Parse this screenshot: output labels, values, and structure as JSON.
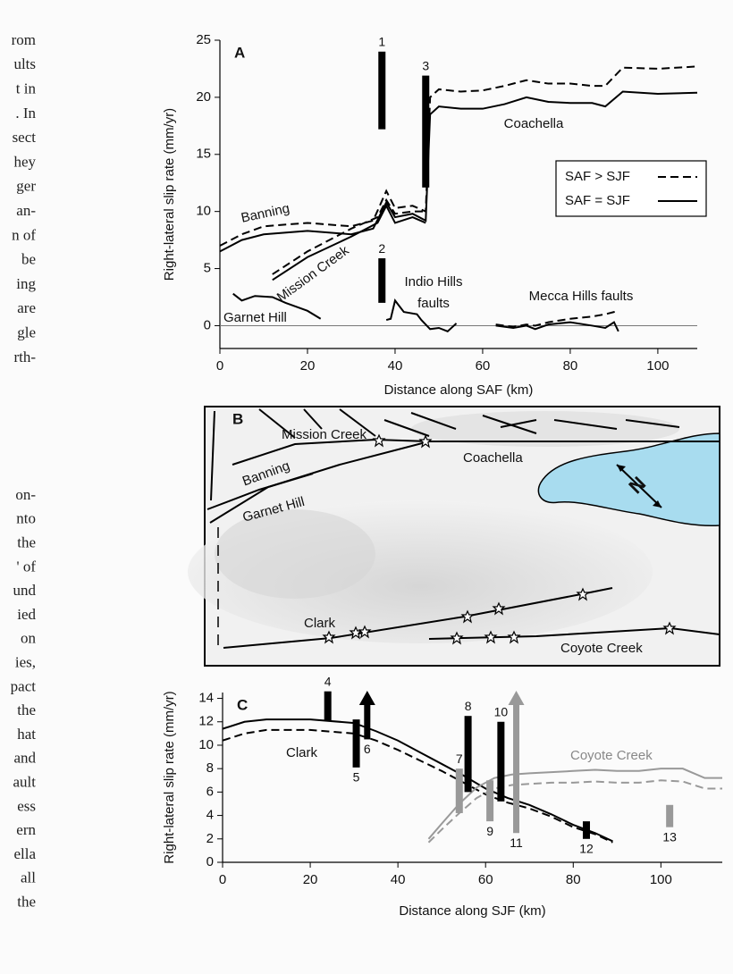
{
  "margin_text": [
    "rom",
    "ults",
    "t in",
    ". In",
    "sect",
    "hey",
    "ger",
    "an-",
    "n of",
    "be",
    "ing",
    "are",
    "gle",
    "rth-",
    "on-",
    "nto",
    "the",
    "' of",
    "und",
    "ied",
    "on",
    "ies,",
    "pact",
    "the",
    "hat",
    "and",
    "ault",
    "ess",
    "ern",
    "ella",
    "all",
    "the"
  ],
  "chart_data": [
    {
      "type": "line",
      "panel_label": "A",
      "xlabel": "Distance along SAF (km)",
      "ylabel": "Right-lateral slip rate (mm/yr)",
      "xlim": [
        0,
        109
      ],
      "ylim": [
        -2,
        25
      ],
      "xticks": [
        0,
        20,
        40,
        60,
        80,
        100
      ],
      "yticks": [
        0,
        5,
        10,
        15,
        20,
        25
      ],
      "zero_line": true,
      "legend": [
        {
          "name": "SAF > SJF",
          "dashed": true
        },
        {
          "name": "SAF = SJF",
          "dashed": false
        }
      ],
      "faults": [
        {
          "color": "#000",
          "x": [
            0,
            5,
            10,
            20,
            30,
            35,
            38,
            40,
            44,
            47,
            48,
            50,
            55,
            60,
            65,
            70,
            75,
            80,
            85,
            88,
            92,
            100,
            109
          ],
          "values": [
            6.5,
            7.5,
            8.0,
            8.3,
            8.0,
            8.5,
            10.8,
            9.5,
            9.8,
            9.2,
            18.5,
            19.2,
            19.0,
            19.0,
            19.4,
            20.0,
            19.6,
            19.5,
            19.5,
            19.2,
            20.5,
            20.3,
            20.4
          ],
          "values_dashed": [
            7.0,
            8.0,
            8.7,
            9.0,
            8.7,
            9.2,
            11.8,
            10.3,
            10.5,
            10.0,
            20.0,
            20.7,
            20.5,
            20.6,
            21.0,
            21.5,
            21.2,
            21.2,
            21.0,
            21.0,
            22.6,
            22.5,
            22.7
          ]
        },
        {
          "color": "#000",
          "x": [
            12,
            20,
            30,
            36,
            38,
            40,
            44,
            47
          ],
          "values": [
            4.0,
            6.0,
            7.8,
            9.0,
            10.5,
            9.0,
            9.5,
            9.0
          ],
          "values_dashed": [
            4.5,
            6.5,
            8.5,
            9.5,
            11.0,
            9.8,
            10.0,
            10.0
          ]
        },
        {
          "color": "#000",
          "x": [
            3,
            5,
            8,
            12,
            15,
            20,
            23
          ],
          "values": [
            2.8,
            2.2,
            2.6,
            2.5,
            2.0,
            1.3,
            0.6
          ]
        },
        {
          "color": "#000",
          "x": [
            38,
            39,
            40,
            42,
            45,
            46,
            48,
            50,
            52,
            54
          ],
          "values": [
            0.5,
            0.6,
            2.2,
            1.2,
            1.0,
            0.5,
            -0.3,
            -0.2,
            -0.5,
            0.2
          ]
        },
        {
          "color": "#000",
          "x": [
            63,
            67,
            70,
            72,
            75,
            80,
            85,
            88,
            90,
            91
          ],
          "values": [
            0.0,
            -0.2,
            0.0,
            -0.3,
            0.1,
            0.3,
            0.0,
            -0.2,
            0.3,
            -0.5
          ],
          "values_dashed": [
            0.1,
            -0.1,
            0.1,
            0.0,
            0.3,
            0.6,
            0.8,
            1.0,
            1.2,
            1.3
          ]
        }
      ],
      "constraints": [
        {
          "label": "1",
          "x": 37,
          "low": 17.2,
          "high": 24,
          "color": "#000"
        },
        {
          "label": "2",
          "x": 37,
          "low": 2.0,
          "high": 5.9,
          "color": "#000"
        },
        {
          "label": "3",
          "x": 47,
          "low": 12.1,
          "high": 21.9,
          "color": "#000"
        }
      ],
      "annotations": [
        "Banning",
        "Mission Creek",
        "Garnet Hill",
        "Indio Hills",
        "faults",
        "Mecca Hills faults",
        "Coachella"
      ]
    },
    {
      "type": "line",
      "panel_label": "C",
      "xlabel": "Distance along SJF (km)",
      "ylabel": "Right-lateral slip rate (mm/yr)",
      "xlim": [
        0,
        114
      ],
      "ylim": [
        0,
        14.5
      ],
      "xticks": [
        0,
        20,
        40,
        60,
        80,
        100
      ],
      "yticks": [
        0,
        2,
        4,
        6,
        8,
        10,
        12,
        14
      ],
      "zero_line": false,
      "faults": [
        {
          "color": "#000",
          "x": [
            0,
            5,
            10,
            20,
            30,
            35,
            40,
            45,
            50,
            55,
            60,
            65,
            70,
            75,
            80,
            85,
            89
          ],
          "values": [
            11.4,
            12.0,
            12.2,
            12.2,
            11.9,
            11.2,
            10.4,
            9.4,
            8.4,
            7.4,
            6.3,
            5.5,
            4.9,
            4.1,
            3.2,
            2.5,
            1.8
          ],
          "values_dashed": [
            10.4,
            11.0,
            11.3,
            11.3,
            11.0,
            10.4,
            9.6,
            8.7,
            7.8,
            6.8,
            5.8,
            5.1,
            4.6,
            3.9,
            3.0,
            2.4,
            1.7
          ]
        },
        {
          "color": "#999",
          "x": [
            47,
            50,
            54,
            58,
            62,
            66,
            70,
            75,
            80,
            85,
            90,
            95,
            100,
            105,
            110,
            114
          ],
          "values": [
            2.0,
            3.3,
            5.0,
            6.4,
            7.2,
            7.5,
            7.6,
            7.7,
            7.8,
            7.9,
            7.8,
            7.8,
            8.0,
            8.0,
            7.2,
            7.2
          ],
          "values_dashed": [
            1.7,
            2.8,
            4.2,
            5.5,
            6.3,
            6.6,
            6.7,
            6.8,
            6.8,
            6.9,
            6.8,
            6.8,
            7.0,
            6.9,
            6.3,
            6.3
          ]
        }
      ],
      "constraints": [
        {
          "label": "4",
          "x": 24,
          "low": 12.1,
          "high": 14.6,
          "color": "#000"
        },
        {
          "label": "5",
          "x": 30.5,
          "low": 8.1,
          "high": 12.2,
          "color": "#000"
        },
        {
          "label": "6",
          "x": 33,
          "low": 10.5,
          "arrow": true,
          "color": "#000"
        },
        {
          "label": "7",
          "x": 54,
          "low": 4.2,
          "high": 8.0,
          "color": "#999"
        },
        {
          "label": "8",
          "x": 56,
          "low": 6.0,
          "high": 12.5,
          "color": "#000"
        },
        {
          "label": "9",
          "x": 61,
          "low": 3.5,
          "high": 7.0,
          "color": "#999"
        },
        {
          "label": "10",
          "x": 63.5,
          "low": 5.2,
          "high": 12.0,
          "color": "#000"
        },
        {
          "label": "11",
          "x": 67,
          "low": 2.5,
          "arrow": true,
          "color": "#999"
        },
        {
          "label": "12",
          "x": 83,
          "low": 2.0,
          "high": 3.5,
          "color": "#000"
        },
        {
          "label": "13",
          "x": 102,
          "low": 3.0,
          "high": 4.9,
          "color": "#999"
        }
      ],
      "annotations": [
        "Clark",
        "Coyote Creek"
      ]
    }
  ],
  "map": {
    "panel_label": "B",
    "labels": [
      "Mission Creek",
      "Coachella",
      "Banning",
      "Garnet Hill",
      "Clark",
      "Coyote Creek"
    ],
    "compass": "N"
  }
}
